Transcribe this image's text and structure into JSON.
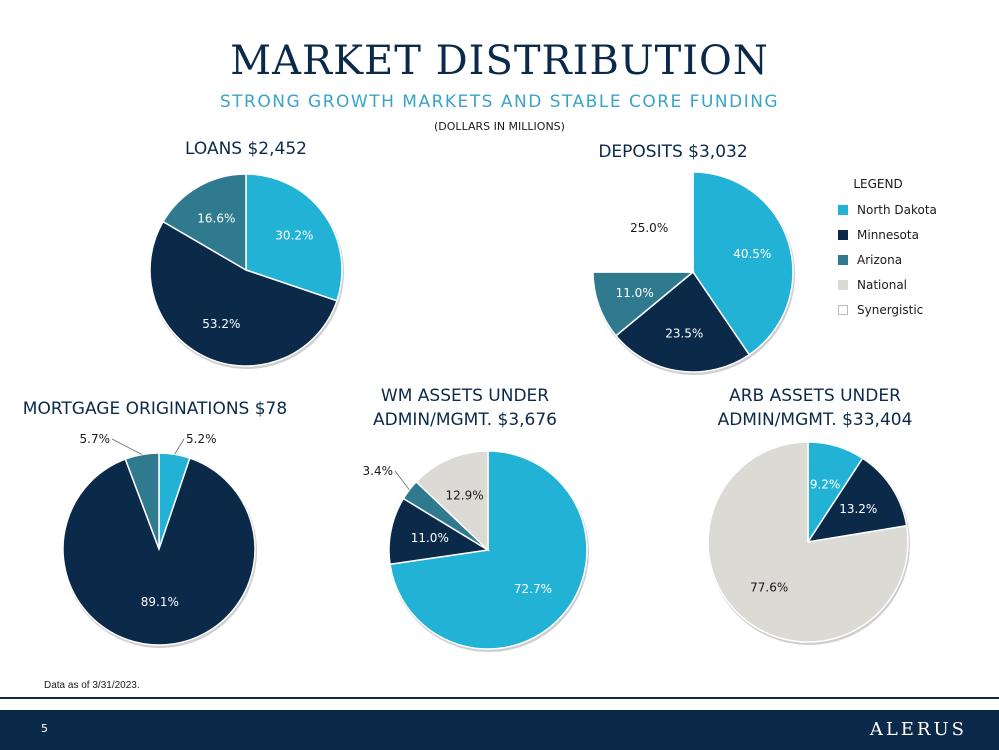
{
  "header": {
    "title": "MARKET DISTRIBUTION",
    "subtitle": "STRONG GROWTH MARKETS AND STABLE CORE FUNDING",
    "units": "(DOLLARS IN MILLIONS)"
  },
  "colors": {
    "North Dakota": "#22b2d6",
    "Minnesota": "#0b2a4a",
    "Arizona": "#2f7a8e",
    "National": "#dcdad5",
    "Synergistic": "#ffffff"
  },
  "legend": {
    "title": "LEGEND",
    "items": [
      "North Dakota",
      "Minnesota",
      "Arizona",
      "National",
      "Synergistic"
    ]
  },
  "chart_data": [
    {
      "type": "pie",
      "title": "LOANS $2,452",
      "slices": [
        {
          "name": "North Dakota",
          "value": 30.2,
          "label": "30.2%"
        },
        {
          "name": "Minnesota",
          "value": 53.2,
          "label": "53.2%"
        },
        {
          "name": "Arizona",
          "value": 16.6,
          "label": "16.6%"
        }
      ]
    },
    {
      "type": "pie",
      "title": "DEPOSITS $3,032",
      "slices": [
        {
          "name": "North Dakota",
          "value": 40.5,
          "label": "40.5%"
        },
        {
          "name": "Minnesota",
          "value": 23.5,
          "label": "23.5%"
        },
        {
          "name": "Arizona",
          "value": 11.0,
          "label": "11.0%"
        },
        {
          "name": "Synergistic",
          "value": 25.0,
          "label": "25.0%"
        }
      ]
    },
    {
      "type": "pie",
      "title": "MORTGAGE ORIGINATIONS $78",
      "slices": [
        {
          "name": "North Dakota",
          "value": 5.2,
          "label": "5.2%"
        },
        {
          "name": "Minnesota",
          "value": 89.1,
          "label": "89.1%"
        },
        {
          "name": "Arizona",
          "value": 5.7,
          "label": "5.7%"
        }
      ]
    },
    {
      "type": "pie",
      "title": "WM ASSETS UNDER ADMIN/MGMT. $3,676",
      "slices": [
        {
          "name": "North Dakota",
          "value": 72.7,
          "label": "72.7%"
        },
        {
          "name": "Minnesota",
          "value": 11.0,
          "label": "11.0%"
        },
        {
          "name": "Arizona",
          "value": 3.4,
          "label": "3.4%"
        },
        {
          "name": "National",
          "value": 12.9,
          "label": "12.9%"
        }
      ]
    },
    {
      "type": "pie",
      "title": "ARB ASSETS UNDER ADMIN/MGMT. $33,404",
      "slices": [
        {
          "name": "North Dakota",
          "value": 9.2,
          "label": "9.2%"
        },
        {
          "name": "Minnesota",
          "value": 13.2,
          "label": "13.2%"
        },
        {
          "name": "National",
          "value": 77.6,
          "label": "77.6%"
        }
      ]
    }
  ],
  "footnote": "Data as of 3/31/2023.",
  "footer": {
    "page_number": "5",
    "brand": "ALERUS"
  }
}
